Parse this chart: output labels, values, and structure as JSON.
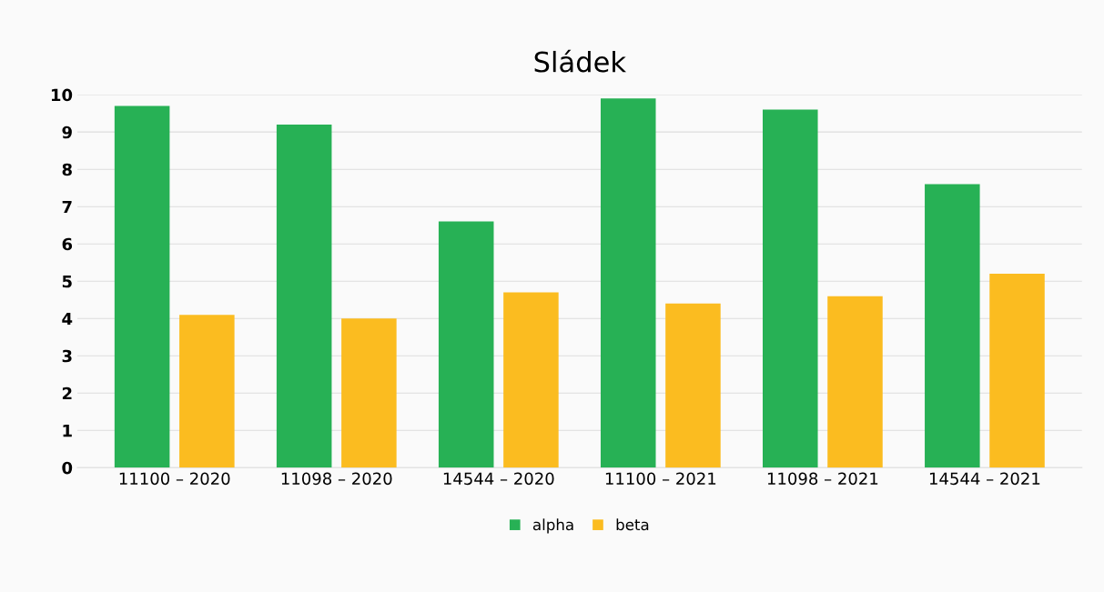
{
  "chart_data": {
    "type": "bar",
    "title": "Sládek",
    "categories": [
      "11100 – 2020",
      "11098 – 2020",
      "14544 – 2020",
      "11100 – 2021",
      "11098 – 2021",
      "14544 – 2021"
    ],
    "series": [
      {
        "name": "alpha",
        "color": "#27b155",
        "values": [
          9.7,
          9.2,
          6.6,
          9.9,
          9.6,
          7.6
        ]
      },
      {
        "name": "beta",
        "color": "#fbbc20",
        "values": [
          4.1,
          4.0,
          4.7,
          4.4,
          4.6,
          5.2
        ]
      }
    ],
    "ylim": [
      0,
      10
    ],
    "yticks": [
      0,
      1,
      2,
      3,
      4,
      5,
      6,
      7,
      8,
      9,
      10
    ],
    "grid": "y",
    "legend": "bottom"
  }
}
